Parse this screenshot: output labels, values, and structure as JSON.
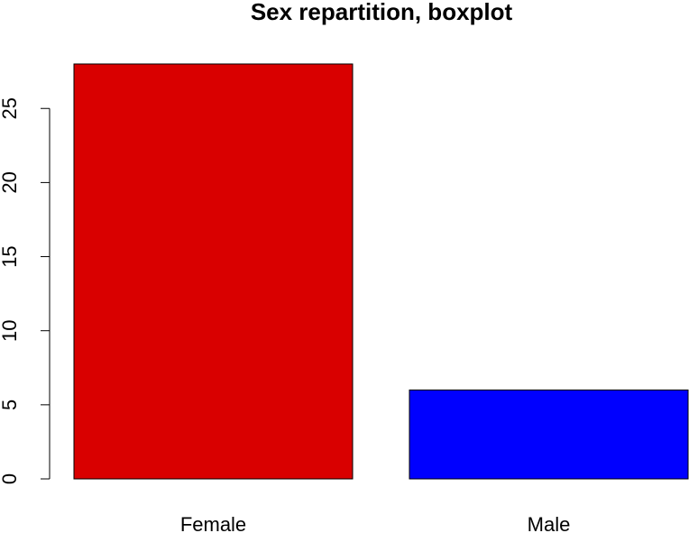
{
  "chart_data": {
    "type": "bar",
    "title": "Sex repartition, boxplot",
    "xlabel": "",
    "ylabel": "",
    "categories": [
      "Female",
      "Male"
    ],
    "values": [
      28,
      6
    ],
    "colors": [
      "#d90000",
      "#0000ff"
    ],
    "yticks": [
      0,
      5,
      10,
      15,
      20,
      25
    ],
    "ylim": [
      0,
      28
    ],
    "grid": false,
    "legend": "none"
  }
}
